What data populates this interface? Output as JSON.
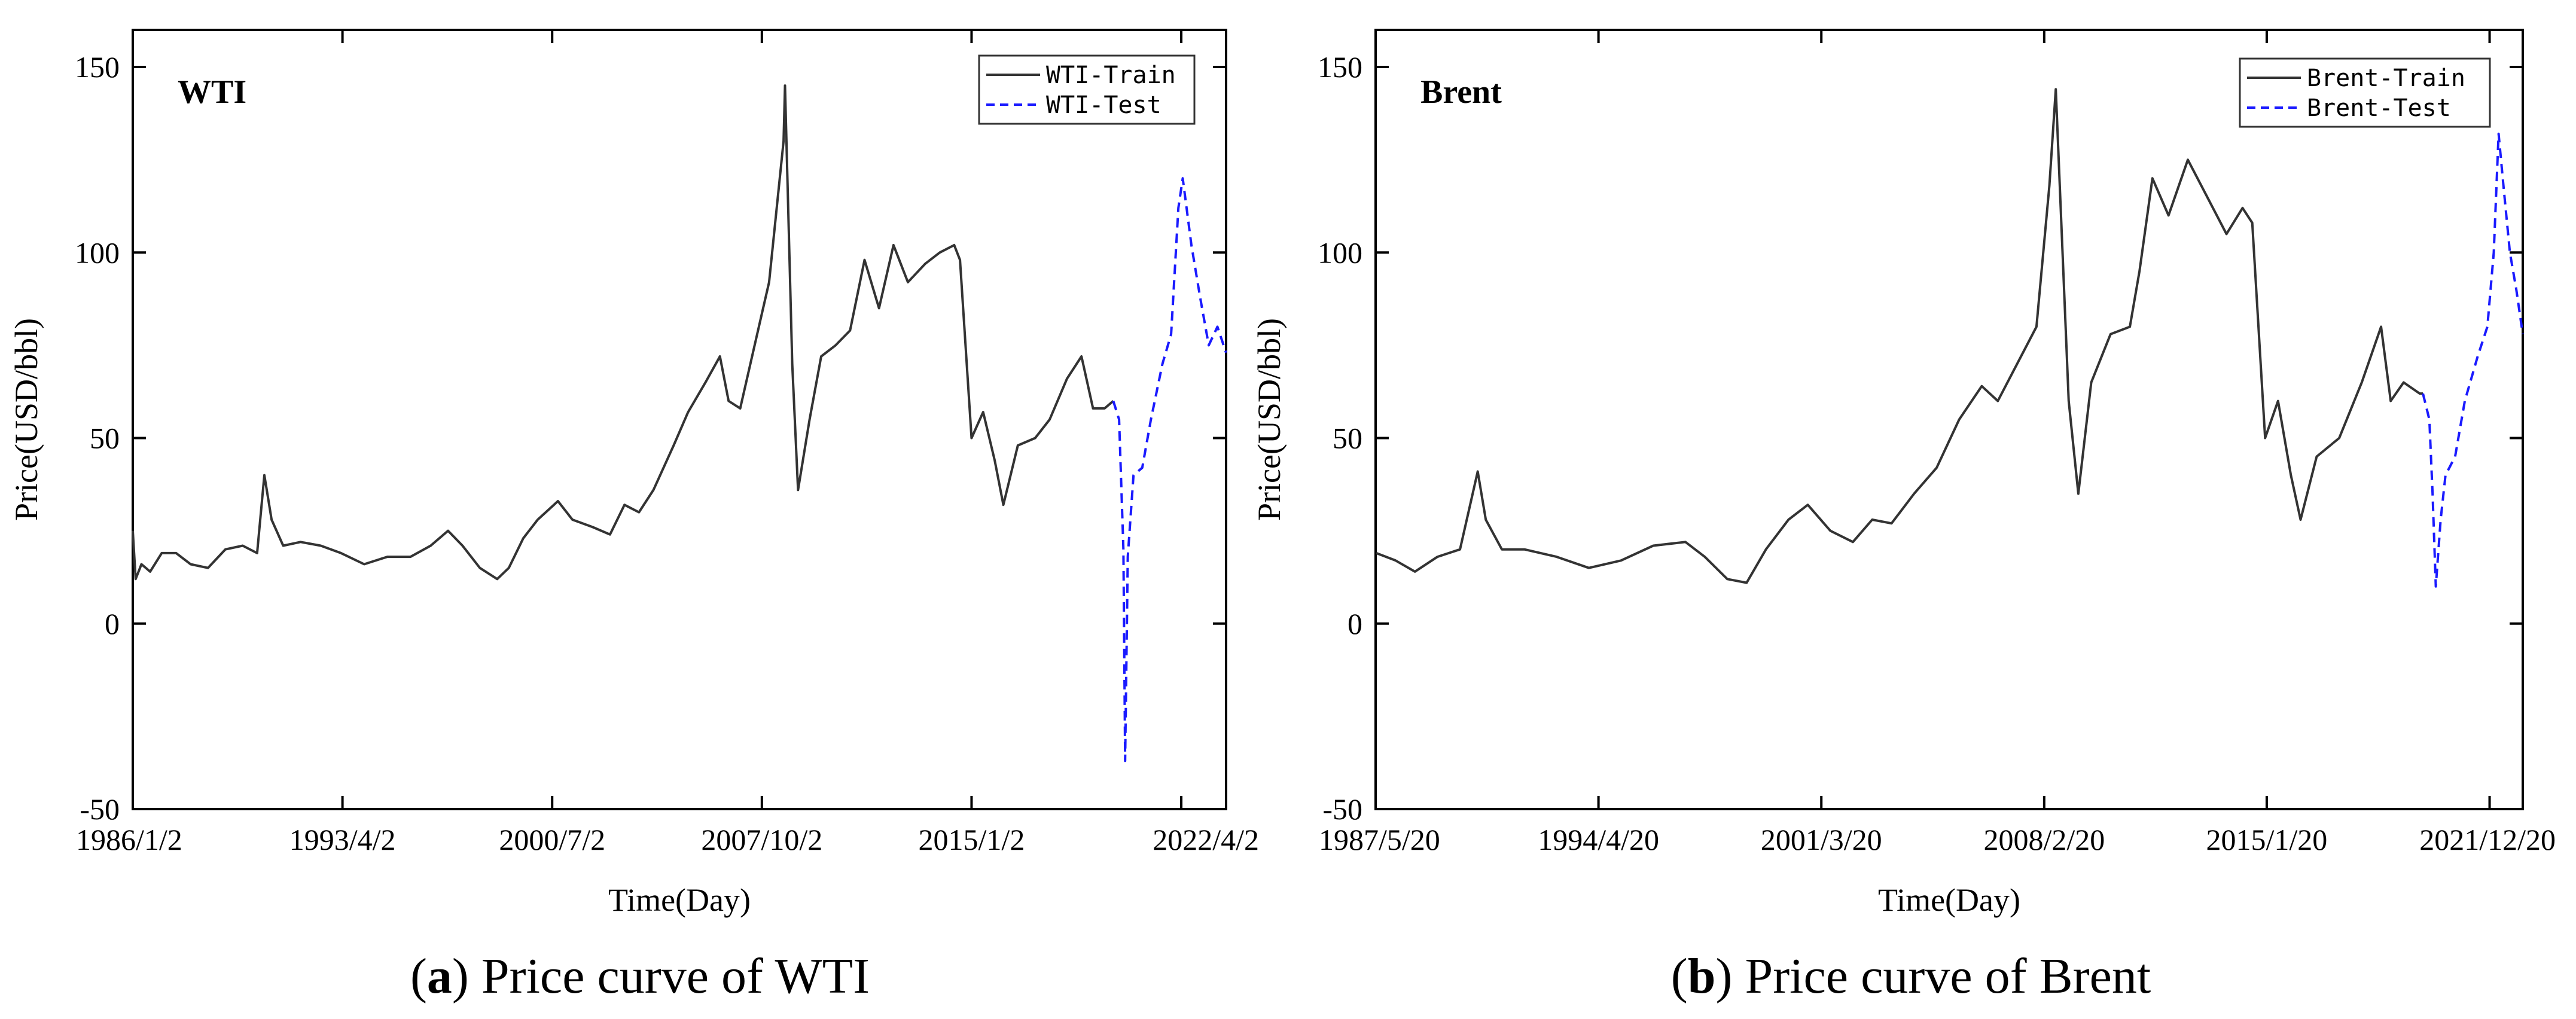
{
  "charts": [
    {
      "id": "wti",
      "panel_label": "WTI",
      "caption_letter": "a",
      "caption_text": "Price curve of WTI",
      "chart_data": {
        "type": "line",
        "title": "WTI",
        "xlabel": "Time(Day)",
        "ylabel": "Price(USD/bbl)",
        "ylim": [
          -50,
          160
        ],
        "yticks": [
          -50,
          0,
          50,
          100,
          150
        ],
        "xlim": [
          1986.0,
          2023.8
        ],
        "xtick_labels": [
          "1986/1/2",
          "1993/4/2",
          "2000/7/2",
          "2007/10/2",
          "2015/1/2",
          "2022/4/2"
        ],
        "xtick_values": [
          1986.0,
          1993.25,
          2000.5,
          2007.75,
          2015.0,
          2022.25
        ],
        "legend_position": "top-right",
        "series": [
          {
            "name": "WTI-Train",
            "color": "#333333",
            "style": "solid",
            "x": [
              1986.0,
              1986.1,
              1986.3,
              1986.6,
              1987.0,
              1987.5,
              1988.0,
              1988.6,
              1989.2,
              1989.8,
              1990.3,
              1990.55,
              1990.8,
              1991.2,
              1991.8,
              1992.5,
              1993.2,
              1994.0,
              1994.8,
              1995.6,
              1996.3,
              1996.9,
              1997.4,
              1998.0,
              1998.6,
              1999.0,
              1999.5,
              2000.0,
              2000.7,
              2001.2,
              2001.9,
              2002.5,
              2003.0,
              2003.5,
              2004.0,
              2004.7,
              2005.2,
              2005.8,
              2006.3,
              2006.6,
              2007.0,
              2007.5,
              2008.0,
              2008.5,
              2008.55,
              2008.8,
              2009.0,
              2009.4,
              2009.8,
              2010.3,
              2010.8,
              2011.3,
              2011.8,
              2012.3,
              2012.8,
              2013.4,
              2013.9,
              2014.4,
              2014.6,
              2015.0,
              2015.4,
              2015.8,
              2016.1,
              2016.6,
              2017.2,
              2017.7,
              2018.3,
              2018.8,
              2019.2,
              2019.6,
              2019.9
            ],
            "y": [
              25,
              12,
              16,
              14,
              19,
              19,
              16,
              15,
              20,
              21,
              19,
              40,
              28,
              21,
              22,
              21,
              19,
              16,
              18,
              18,
              21,
              25,
              21,
              15,
              12,
              15,
              23,
              28,
              33,
              28,
              26,
              24,
              32,
              30,
              36,
              48,
              57,
              65,
              72,
              60,
              58,
              75,
              92,
              130,
              145,
              70,
              36,
              55,
              72,
              75,
              79,
              98,
              85,
              102,
              92,
              97,
              100,
              102,
              98,
              50,
              57,
              44,
              32,
              48,
              50,
              55,
              66,
              72,
              58,
              58,
              60
            ]
          },
          {
            "name": "WTI-Test",
            "color": "#1a1aff",
            "style": "dashed",
            "x": [
              2019.9,
              2020.1,
              2020.25,
              2020.31,
              2020.4,
              2020.6,
              2020.9,
              2021.2,
              2021.6,
              2021.9,
              2022.15,
              2022.3,
              2022.6,
              2022.9,
              2023.2,
              2023.5,
              2023.8
            ],
            "y": [
              60,
              55,
              20,
              -37,
              18,
              40,
              42,
              55,
              70,
              78,
              112,
              120,
              102,
              88,
              75,
              80,
              73
            ]
          }
        ]
      }
    },
    {
      "id": "brent",
      "panel_label": "Brent",
      "caption_letter": "b",
      "caption_text": "Price curve of Brent",
      "chart_data": {
        "type": "line",
        "title": "Brent",
        "xlabel": "Time(Day)",
        "ylabel": "Price(USD/bbl)",
        "ylim": [
          -50,
          160
        ],
        "yticks": [
          -50,
          0,
          50,
          100,
          150
        ],
        "xlim": [
          1987.38,
          2023.0
        ],
        "xtick_labels": [
          "1987/5/20",
          "1994/4/20",
          "2001/3/20",
          "2008/2/20",
          "2015/1/20",
          "2021/12/20"
        ],
        "xtick_values": [
          1987.38,
          1994.3,
          2001.22,
          2008.14,
          2015.05,
          2021.97
        ],
        "legend_position": "top-right",
        "series": [
          {
            "name": "Brent-Train",
            "color": "#333333",
            "style": "solid",
            "x": [
              1987.4,
              1988.0,
              1988.6,
              1989.3,
              1990.0,
              1990.55,
              1990.8,
              1991.3,
              1992.0,
              1993.0,
              1994.0,
              1995.0,
              1996.0,
              1997.0,
              1997.6,
              1998.3,
              1998.9,
              1999.5,
              2000.2,
              2000.8,
              2001.5,
              2002.2,
              2002.8,
              2003.4,
              2004.1,
              2004.8,
              2005.5,
              2006.2,
              2006.7,
              2007.3,
              2007.9,
              2008.3,
              2008.5,
              2008.9,
              2009.2,
              2009.6,
              2010.2,
              2010.8,
              2011.1,
              2011.5,
              2012.0,
              2012.6,
              2013.2,
              2013.8,
              2014.3,
              2014.6,
              2015.0,
              2015.4,
              2015.8,
              2016.1,
              2016.6,
              2017.3,
              2018.0,
              2018.6,
              2018.9,
              2019.3,
              2019.8,
              2019.9
            ],
            "y": [
              19,
              17,
              14,
              18,
              20,
              41,
              28,
              20,
              20,
              18,
              15,
              17,
              21,
              22,
              18,
              12,
              11,
              20,
              28,
              32,
              25,
              22,
              28,
              27,
              35,
              42,
              55,
              64,
              60,
              70,
              80,
              118,
              144,
              60,
              35,
              65,
              78,
              80,
              95,
              120,
              110,
              125,
              115,
              105,
              112,
              108,
              50,
              60,
              40,
              28,
              45,
              50,
              65,
              80,
              60,
              65,
              62,
              62
            ]
          },
          {
            "name": "Brent-Test",
            "color": "#1a1aff",
            "style": "dashed",
            "x": [
              2019.9,
              2020.1,
              2020.2,
              2020.3,
              2020.45,
              2020.6,
              2020.9,
              2021.2,
              2021.6,
              2021.9,
              2022.1,
              2022.25,
              2022.4,
              2022.6,
              2022.8,
              2023.0
            ],
            "y": [
              62,
              55,
              35,
              10,
              28,
              40,
              45,
              60,
              72,
              80,
              100,
              132,
              118,
              100,
              90,
              78
            ]
          }
        ]
      }
    }
  ]
}
